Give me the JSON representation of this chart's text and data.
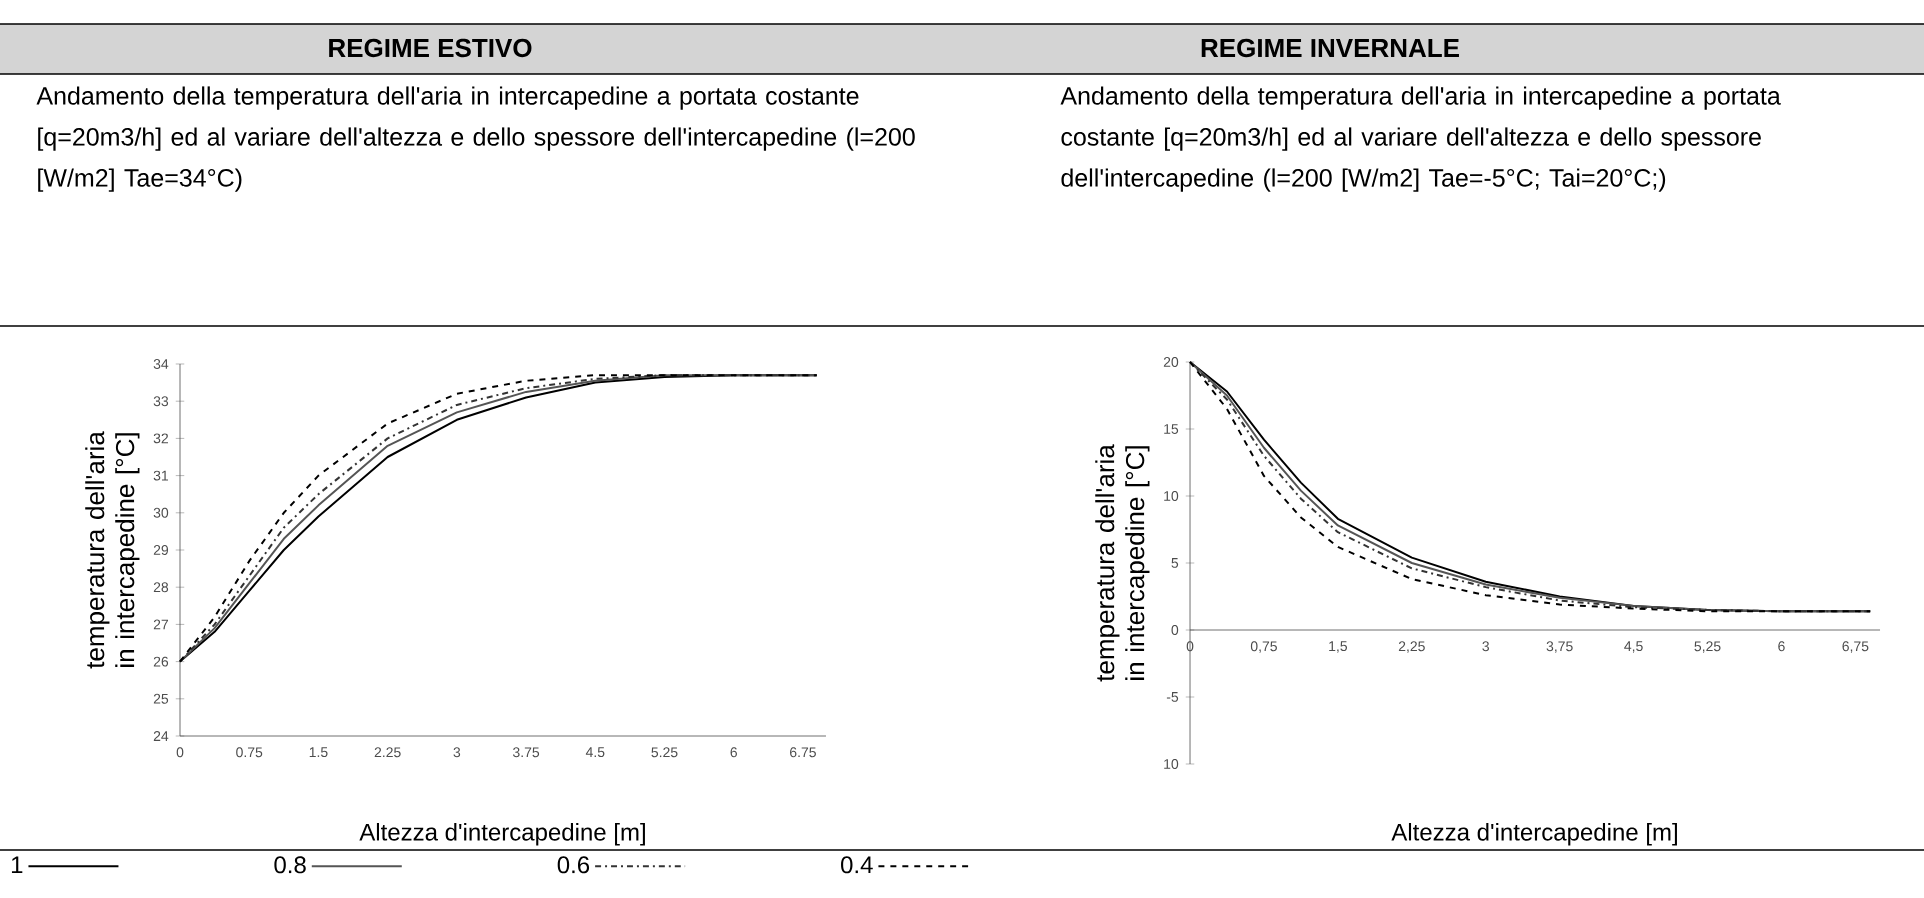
{
  "chart_data": [
    {
      "type": "line",
      "title": "REGIME ESTIVO",
      "subtitle": "Andamento della temperatura dell'aria in intercapedine a portata costante [q=20m3/h] ed al variare dell'altezza e dello spessore dell'intercapedine (l=200 [W/m2] Tae=34°C)",
      "xlabel": "Altezza d'intercapedine [m]",
      "ylabel": "temperatura dell'aria in intercapedine [°C]",
      "x": [
        0,
        0.375,
        0.75,
        1.125,
        1.5,
        2.25,
        3,
        3.75,
        4.5,
        5.25,
        6,
        6.9
      ],
      "series": [
        {
          "name": "1",
          "color": "#000000",
          "line_style": "solid",
          "values": [
            26,
            26.8,
            27.9,
            29.0,
            29.9,
            31.5,
            32.5,
            33.1,
            33.5,
            33.65,
            33.7,
            33.7
          ]
        },
        {
          "name": "0.8",
          "color": "#555555",
          "line_style": "solid",
          "values": [
            26,
            26.9,
            28.1,
            29.3,
            30.2,
            31.8,
            32.7,
            33.25,
            33.55,
            33.7,
            33.7,
            33.7
          ]
        },
        {
          "name": "0.6",
          "color": "#333333",
          "line_style": "dashdot",
          "values": [
            26,
            27.0,
            28.3,
            29.6,
            30.5,
            32.0,
            32.9,
            33.35,
            33.6,
            33.7,
            33.7,
            33.7
          ]
        },
        {
          "name": "0.4",
          "color": "#000000",
          "line_style": "dashed",
          "values": [
            26,
            27.2,
            28.7,
            30.0,
            31.0,
            32.4,
            33.2,
            33.55,
            33.7,
            33.7,
            33.7,
            33.7
          ]
        }
      ],
      "xlim": [
        0,
        7
      ],
      "ylim": [
        24,
        34
      ],
      "xticks": [
        0,
        0.75,
        1.5,
        2.25,
        3,
        3.75,
        4.5,
        5.25,
        6,
        6.75
      ],
      "yticks": [
        24,
        25,
        26,
        27,
        28,
        29,
        30,
        31,
        32,
        33,
        34
      ],
      "legend": "bottom"
    },
    {
      "type": "line",
      "title": "REGIME INVERNALE",
      "subtitle": "Andamento della temperatura dell'aria in intercapedine a portata costante [q=20m3/h] ed al variare dell'altezza e dello spessore dell'intercapedine (l=200 [W/m2] Tae=-5°C; Tai=20°C;)",
      "xlabel": "Altezza d'intercapedine [m]",
      "ylabel": "temperatura dell'aria in intercapedine [°C]",
      "x": [
        0,
        0.375,
        0.75,
        1.125,
        1.5,
        2.25,
        3,
        3.75,
        4.5,
        5.25,
        6,
        6.9
      ],
      "series": [
        {
          "color": "#000000",
          "line_style": "solid",
          "values": [
            20,
            17.8,
            14.2,
            11.0,
            8.3,
            5.4,
            3.6,
            2.5,
            1.8,
            1.5,
            1.4,
            1.4
          ]
        },
        {
          "color": "#555555",
          "line_style": "solid",
          "values": [
            20,
            17.5,
            13.6,
            10.4,
            7.8,
            5.0,
            3.4,
            2.4,
            1.8,
            1.5,
            1.4,
            1.4
          ]
        },
        {
          "color": "#333333",
          "line_style": "dashdot",
          "values": [
            20,
            17.2,
            13.0,
            9.8,
            7.3,
            4.6,
            3.2,
            2.2,
            1.7,
            1.5,
            1.4,
            1.4
          ]
        },
        {
          "color": "#000000",
          "line_style": "dashed",
          "values": [
            20,
            16.5,
            11.5,
            8.4,
            6.2,
            3.8,
            2.6,
            1.9,
            1.6,
            1.4,
            1.4,
            1.4
          ]
        }
      ],
      "xlim": [
        0,
        7
      ],
      "ylim": [
        -10,
        20
      ],
      "xticks": [
        {
          "value": 0,
          "label": "0"
        },
        {
          "value": 0.75,
          "label": "0,75"
        },
        {
          "value": 1.5,
          "label": "1,5"
        },
        {
          "value": 2.25,
          "label": "2,25"
        },
        {
          "value": 3,
          "label": "3"
        },
        {
          "value": 3.75,
          "label": "3,75"
        },
        {
          "value": 4.5,
          "label": "4,5"
        },
        {
          "value": 5.25,
          "label": "5,25"
        },
        {
          "value": 6,
          "label": "6"
        },
        {
          "value": 6.75,
          "label": "6,75"
        }
      ],
      "yticks": [
        {
          "value": -10,
          "label": "10"
        },
        -5,
        0,
        5,
        10,
        15,
        20
      ]
    }
  ]
}
